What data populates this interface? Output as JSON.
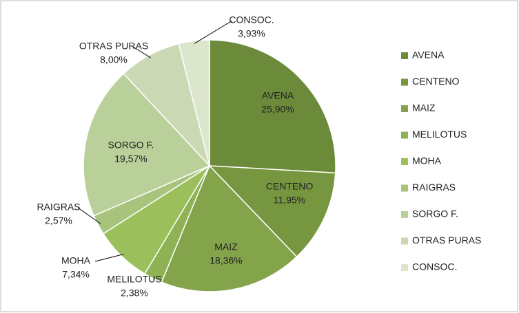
{
  "chart_data": {
    "type": "pie",
    "categories": [
      "AVENA",
      "CENTENO",
      "MAIZ",
      "MELILOTUS",
      "MOHA",
      "RAIGRAS",
      "SORGO F.",
      "OTRAS PURAS",
      "CONSOC."
    ],
    "values": [
      25.9,
      11.95,
      18.36,
      2.38,
      7.34,
      2.57,
      19.57,
      8.0,
      3.93
    ],
    "value_labels": [
      "25,90%",
      "11,95%",
      "18,36%",
      "2,38%",
      "7,34%",
      "2,57%",
      "19,57%",
      "8,00%",
      "3,93%"
    ],
    "colors": [
      "#6b8a3a",
      "#76963f",
      "#84a44c",
      "#8fb254",
      "#9bbf5a",
      "#a8c47c",
      "#b9d09a",
      "#cad9b4",
      "#dce6cd"
    ],
    "legend": "right"
  }
}
